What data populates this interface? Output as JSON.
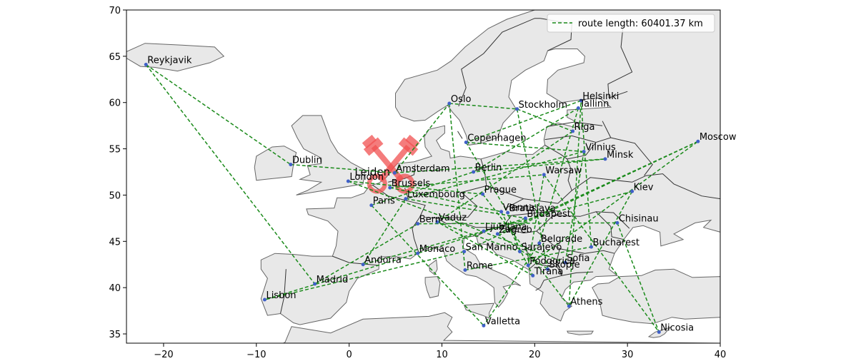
{
  "chart_data": {
    "type": "line",
    "title": "",
    "xlabel": "",
    "ylabel": "",
    "xlim": [
      -24,
      40
    ],
    "ylim": [
      34,
      70
    ],
    "x_ticks": [
      -20,
      -10,
      0,
      10,
      20,
      30,
      40
    ],
    "y_ticks": [
      35,
      40,
      45,
      50,
      55,
      60,
      65,
      70
    ],
    "grid": false,
    "legend_position": "top-right",
    "background_map": "Europe",
    "logo_text": "Leiden",
    "colors": {
      "route": "#1a8a1a",
      "city_dot": "#4060c8",
      "land": "#e8e8e8",
      "border": "#555555",
      "logo": "#f05050"
    },
    "series": [
      {
        "name": "route length: 60401.37 km",
        "style": "dashed",
        "route_order": [
          "Reykjavik",
          "Dublin",
          "Amsterdam",
          "Luxembourg",
          "Vaduz",
          "Budapest",
          "Minsk",
          "Helsinki",
          "Skopje",
          "Rome",
          "Lisbon",
          "Reykjavik"
        ]
      }
    ],
    "cities": [
      {
        "name": "Reykjavik",
        "x": -21.9,
        "y": 64.1
      },
      {
        "name": "Oslo",
        "x": 10.8,
        "y": 59.9
      },
      {
        "name": "Stockholm",
        "x": 18.1,
        "y": 59.3
      },
      {
        "name": "Helsinki",
        "x": 25.0,
        "y": 60.2
      },
      {
        "name": "Tallinn",
        "x": 24.7,
        "y": 59.4
      },
      {
        "name": "Riga",
        "x": 24.1,
        "y": 56.9
      },
      {
        "name": "Copenhagen",
        "x": 12.6,
        "y": 55.7
      },
      {
        "name": "Moscow",
        "x": 37.6,
        "y": 55.8
      },
      {
        "name": "Vilnius",
        "x": 25.3,
        "y": 54.7
      },
      {
        "name": "Minsk",
        "x": 27.6,
        "y": 53.9
      },
      {
        "name": "Dublin",
        "x": -6.3,
        "y": 53.3
      },
      {
        "name": "Amsterdam",
        "x": 4.9,
        "y": 52.4
      },
      {
        "name": "Berlin",
        "x": 13.4,
        "y": 52.5
      },
      {
        "name": "Warsaw",
        "x": 21.0,
        "y": 52.2
      },
      {
        "name": "London",
        "x": -0.1,
        "y": 51.5
      },
      {
        "name": "Brussels",
        "x": 4.4,
        "y": 50.8
      },
      {
        "name": "Kiev",
        "x": 30.5,
        "y": 50.4
      },
      {
        "name": "Prague",
        "x": 14.4,
        "y": 50.1
      },
      {
        "name": "Luxembourg",
        "x": 6.1,
        "y": 49.6
      },
      {
        "name": "Paris",
        "x": 2.4,
        "y": 48.9
      },
      {
        "name": "Vienna",
        "x": 16.4,
        "y": 48.2
      },
      {
        "name": "Bratislava",
        "x": 17.1,
        "y": 48.1
      },
      {
        "name": "Budapest",
        "x": 19.0,
        "y": 47.5
      },
      {
        "name": "Vaduz",
        "x": 9.5,
        "y": 47.1
      },
      {
        "name": "Bern",
        "x": 7.4,
        "y": 46.9
      },
      {
        "name": "Chisinau",
        "x": 28.9,
        "y": 47.0
      },
      {
        "name": "Ljubljana",
        "x": 14.5,
        "y": 46.1
      },
      {
        "name": "Zagreb",
        "x": 16.0,
        "y": 45.8
      },
      {
        "name": "Belgrade",
        "x": 20.5,
        "y": 44.8
      },
      {
        "name": "Bucharest",
        "x": 26.1,
        "y": 44.4
      },
      {
        "name": "San Marino",
        "x": 12.4,
        "y": 43.9
      },
      {
        "name": "Sarajevo",
        "x": 18.4,
        "y": 43.9
      },
      {
        "name": "Monaco",
        "x": 7.4,
        "y": 43.7
      },
      {
        "name": "Andorra",
        "x": 1.5,
        "y": 42.5
      },
      {
        "name": "Podgorica",
        "x": 19.3,
        "y": 42.4
      },
      {
        "name": "Sofia",
        "x": 23.3,
        "y": 42.7
      },
      {
        "name": "Skopje",
        "x": 21.4,
        "y": 42.0
      },
      {
        "name": "Rome",
        "x": 12.5,
        "y": 41.9
      },
      {
        "name": "Tirana",
        "x": 19.8,
        "y": 41.3
      },
      {
        "name": "Madrid",
        "x": -3.7,
        "y": 40.4
      },
      {
        "name": "Lisbon",
        "x": -9.1,
        "y": 38.7
      },
      {
        "name": "Athens",
        "x": 23.7,
        "y": 38.0
      },
      {
        "name": "Valletta",
        "x": 14.5,
        "y": 35.9
      },
      {
        "name": "Nicosia",
        "x": 33.4,
        "y": 35.2
      }
    ],
    "routes": [
      [
        "Reykjavik",
        "Dublin"
      ],
      [
        "Reykjavik",
        "Madrid"
      ],
      [
        "Dublin",
        "Amsterdam"
      ],
      [
        "Amsterdam",
        "Oslo"
      ],
      [
        "Amsterdam",
        "Minsk"
      ],
      [
        "Oslo",
        "Stockholm"
      ],
      [
        "Oslo",
        "Rome"
      ],
      [
        "Stockholm",
        "Skopje"
      ],
      [
        "Stockholm",
        "Riga"
      ],
      [
        "Helsinki",
        "Copenhagen"
      ],
      [
        "Helsinki",
        "Bucharest"
      ],
      [
        "Tallinn",
        "Berlin"
      ],
      [
        "Tallinn",
        "Belgrade"
      ],
      [
        "Riga",
        "Vaduz"
      ],
      [
        "Copenhagen",
        "Vilnius"
      ],
      [
        "Copenhagen",
        "Bratislava"
      ],
      [
        "Moscow",
        "Zagreb"
      ],
      [
        "Moscow",
        "San Marino"
      ],
      [
        "Vilnius",
        "Luxembourg"
      ],
      [
        "Vilnius",
        "Sofia"
      ],
      [
        "Minsk",
        "Berlin"
      ],
      [
        "London",
        "Prague"
      ],
      [
        "London",
        "Sofia"
      ],
      [
        "Brussels",
        "Warsaw"
      ],
      [
        "Brussels",
        "Vienna"
      ],
      [
        "Warsaw",
        "Nicosia"
      ],
      [
        "Warsaw",
        "Podgorica"
      ],
      [
        "Kiev",
        "Athens"
      ],
      [
        "Kiev",
        "Ljubljana"
      ],
      [
        "Prague",
        "Athens"
      ],
      [
        "Luxembourg",
        "Budapest"
      ],
      [
        "Paris",
        "Berlin"
      ],
      [
        "Paris",
        "Valletta"
      ],
      [
        "Vienna",
        "Tirana"
      ],
      [
        "Budapest",
        "Monaco"
      ],
      [
        "Vaduz",
        "Sarajevo"
      ],
      [
        "Bern",
        "Madrid"
      ],
      [
        "Bern",
        "Chisinau"
      ],
      [
        "Chisinau",
        "Nicosia"
      ],
      [
        "Ljubljana",
        "Andorra"
      ],
      [
        "Belgrade",
        "Valletta"
      ],
      [
        "San Marino",
        "Lisbon"
      ],
      [
        "Monaco",
        "Lisbon"
      ],
      [
        "Andorra",
        "Luxembourg"
      ],
      [
        "Podgorica",
        "Moscow"
      ],
      [
        "Rome",
        "Bucharest"
      ],
      [
        "Tirana",
        "Vaduz"
      ],
      [
        "Zagreb",
        "Skopje"
      ],
      [
        "Sarajevo",
        "Bratislava"
      ],
      [
        "Athens",
        "Helsinki"
      ]
    ]
  }
}
